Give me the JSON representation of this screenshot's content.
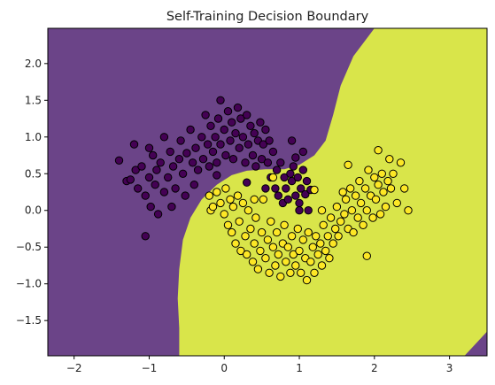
{
  "chart_data": {
    "type": "scatter",
    "title": "Self-Training Decision Boundary",
    "xlabel": "",
    "ylabel": "",
    "xlim": [
      -2.35,
      3.5
    ],
    "ylim": [
      -1.98,
      2.48
    ],
    "xticks": [
      -2,
      -1,
      0,
      1,
      2,
      3
    ],
    "yticks": [
      -1.5,
      -1.0,
      -0.5,
      0.0,
      0.5,
      1.0,
      1.5,
      2.0
    ],
    "xtick_labels": [
      "−2",
      "−1",
      "0",
      "1",
      "2",
      "3"
    ],
    "ytick_labels": [
      "−1.5",
      "−1.0",
      "−0.5",
      "0.0",
      "0.5",
      "1.0",
      "1.5",
      "2.0"
    ],
    "grid": false,
    "colors": {
      "class0_region": "#6b4488",
      "class1_region": "#d9e54a",
      "class0_point": "#440154",
      "class1_point": "#fde725",
      "edge": "#000000"
    },
    "boundary": [
      [
        -0.6,
        -1.98
      ],
      [
        -0.6,
        -1.6
      ],
      [
        -0.62,
        -1.2
      ],
      [
        -0.6,
        -0.8
      ],
      [
        -0.55,
        -0.4
      ],
      [
        -0.45,
        -0.1
      ],
      [
        -0.3,
        0.15
      ],
      [
        -0.1,
        0.35
      ],
      [
        0.1,
        0.48
      ],
      [
        0.3,
        0.54
      ],
      [
        0.55,
        0.56
      ],
      [
        0.8,
        0.56
      ],
      [
        1.0,
        0.62
      ],
      [
        1.2,
        0.75
      ],
      [
        1.35,
        0.95
      ],
      [
        1.45,
        1.3
      ],
      [
        1.55,
        1.7
      ],
      [
        1.72,
        2.1
      ],
      [
        2.0,
        2.48
      ]
    ],
    "boundary_bottom_right": [
      [
        3.2,
        -1.98
      ],
      [
        3.5,
        -1.65
      ]
    ],
    "series": [
      {
        "label": "0",
        "points": [
          [
            -1.4,
            0.68
          ],
          [
            -1.3,
            0.4
          ],
          [
            -1.25,
            0.42
          ],
          [
            -1.2,
            0.9
          ],
          [
            -1.18,
            0.55
          ],
          [
            -1.15,
            0.3
          ],
          [
            -1.1,
            0.6
          ],
          [
            -1.05,
            0.2
          ],
          [
            -1.0,
            0.85
          ],
          [
            -1.0,
            0.45
          ],
          [
            -0.98,
            0.05
          ],
          [
            -0.95,
            0.75
          ],
          [
            -0.92,
            0.35
          ],
          [
            -0.9,
            0.55
          ],
          [
            -0.88,
            -0.05
          ],
          [
            -0.85,
            0.65
          ],
          [
            -0.8,
            0.25
          ],
          [
            -0.8,
            1.0
          ],
          [
            -0.75,
            0.45
          ],
          [
            -0.72,
            0.8
          ],
          [
            -0.7,
            0.05
          ],
          [
            -0.68,
            0.6
          ],
          [
            -0.65,
            0.3
          ],
          [
            -0.6,
            0.7
          ],
          [
            -0.58,
            0.95
          ],
          [
            -0.55,
            0.5
          ],
          [
            -0.52,
            0.2
          ],
          [
            -0.5,
            0.78
          ],
          [
            -0.45,
            1.1
          ],
          [
            -0.42,
            0.65
          ],
          [
            -0.4,
            0.35
          ],
          [
            -0.38,
            0.85
          ],
          [
            -0.35,
            0.55
          ],
          [
            -0.3,
            1.0
          ],
          [
            -0.28,
            0.7
          ],
          [
            -0.25,
            1.3
          ],
          [
            -0.22,
            0.9
          ],
          [
            -0.2,
            0.6
          ],
          [
            -0.18,
            1.15
          ],
          [
            -0.15,
            0.8
          ],
          [
            -0.12,
            1.0
          ],
          [
            -0.1,
            0.65
          ],
          [
            -0.08,
            1.25
          ],
          [
            -0.05,
            0.9
          ],
          [
            -0.05,
            1.5
          ],
          [
            0.0,
            1.1
          ],
          [
            0.02,
            0.75
          ],
          [
            0.05,
            1.35
          ],
          [
            0.08,
            0.95
          ],
          [
            0.1,
            1.2
          ],
          [
            0.12,
            0.7
          ],
          [
            0.15,
            1.05
          ],
          [
            0.18,
            1.4
          ],
          [
            0.2,
            0.85
          ],
          [
            0.22,
            1.25
          ],
          [
            0.25,
            1.0
          ],
          [
            0.28,
            0.65
          ],
          [
            0.3,
            1.3
          ],
          [
            0.32,
            0.9
          ],
          [
            0.35,
            1.15
          ],
          [
            0.38,
            0.75
          ],
          [
            0.4,
            1.05
          ],
          [
            0.42,
            0.6
          ],
          [
            0.45,
            0.95
          ],
          [
            0.48,
            1.2
          ],
          [
            0.5,
            0.7
          ],
          [
            0.52,
            0.9
          ],
          [
            0.55,
            1.1
          ],
          [
            0.58,
            0.65
          ],
          [
            0.6,
            0.95
          ],
          [
            0.62,
            0.45
          ],
          [
            0.65,
            0.8
          ],
          [
            0.68,
            0.3
          ],
          [
            0.7,
            0.55
          ],
          [
            0.72,
            0.2
          ],
          [
            0.75,
            0.65
          ],
          [
            0.78,
            0.1
          ],
          [
            0.8,
            0.45
          ],
          [
            0.82,
            0.3
          ],
          [
            0.85,
            0.15
          ],
          [
            0.88,
            0.5
          ],
          [
            0.9,
            0.4
          ],
          [
            0.92,
            0.6
          ],
          [
            0.95,
            0.2
          ],
          [
            0.98,
            0.45
          ],
          [
            1.0,
            0.1
          ],
          [
            1.02,
            0.3
          ],
          [
            1.05,
            0.55
          ],
          [
            1.08,
            0.22
          ],
          [
            1.1,
            0.4
          ],
          [
            1.12,
            0.0
          ],
          [
            1.15,
            0.28
          ],
          [
            0.9,
            0.95
          ],
          [
            0.95,
            0.72
          ],
          [
            1.05,
            0.8
          ],
          [
            -1.05,
            -0.35
          ],
          [
            -0.1,
            0.48
          ],
          [
            0.3,
            0.38
          ],
          [
            0.55,
            0.3
          ],
          [
            1.0,
            0.0
          ]
        ]
      },
      {
        "label": "1",
        "points": [
          [
            -0.2,
            0.2
          ],
          [
            -0.18,
            0.0
          ],
          [
            -0.15,
            0.05
          ],
          [
            -0.1,
            0.25
          ],
          [
            -0.05,
            0.1
          ],
          [
            0.0,
            -0.05
          ],
          [
            0.02,
            0.3
          ],
          [
            0.05,
            -0.2
          ],
          [
            0.08,
            0.15
          ],
          [
            0.1,
            -0.3
          ],
          [
            0.12,
            0.05
          ],
          [
            0.15,
            -0.45
          ],
          [
            0.18,
            0.2
          ],
          [
            0.2,
            -0.15
          ],
          [
            0.22,
            -0.55
          ],
          [
            0.25,
            0.1
          ],
          [
            0.28,
            -0.35
          ],
          [
            0.3,
            -0.6
          ],
          [
            0.32,
            0.0
          ],
          [
            0.35,
            -0.25
          ],
          [
            0.38,
            -0.7
          ],
          [
            0.4,
            -0.45
          ],
          [
            0.42,
            -0.1
          ],
          [
            0.45,
            -0.8
          ],
          [
            0.48,
            -0.55
          ],
          [
            0.5,
            -0.3
          ],
          [
            0.52,
            0.15
          ],
          [
            0.55,
            -0.65
          ],
          [
            0.58,
            -0.4
          ],
          [
            0.6,
            -0.85
          ],
          [
            0.62,
            -0.15
          ],
          [
            0.65,
            -0.5
          ],
          [
            0.68,
            -0.75
          ],
          [
            0.7,
            -0.3
          ],
          [
            0.72,
            -0.6
          ],
          [
            0.75,
            -0.9
          ],
          [
            0.78,
            -0.45
          ],
          [
            0.8,
            -0.2
          ],
          [
            0.82,
            -0.7
          ],
          [
            0.85,
            -0.5
          ],
          [
            0.88,
            -0.85
          ],
          [
            0.9,
            -0.35
          ],
          [
            0.92,
            -0.6
          ],
          [
            0.95,
            -0.75
          ],
          [
            0.98,
            -0.25
          ],
          [
            1.0,
            -0.55
          ],
          [
            1.02,
            -0.85
          ],
          [
            1.05,
            -0.4
          ],
          [
            1.08,
            -0.65
          ],
          [
            1.1,
            -0.95
          ],
          [
            1.12,
            -0.3
          ],
          [
            1.15,
            -0.7
          ],
          [
            1.18,
            -0.5
          ],
          [
            1.2,
            -0.85
          ],
          [
            1.22,
            -0.35
          ],
          [
            1.25,
            -0.6
          ],
          [
            1.28,
            -0.45
          ],
          [
            1.3,
            -0.75
          ],
          [
            1.32,
            -0.2
          ],
          [
            1.35,
            -0.55
          ],
          [
            1.38,
            -0.35
          ],
          [
            1.4,
            -0.65
          ],
          [
            1.42,
            -0.1
          ],
          [
            1.45,
            -0.45
          ],
          [
            1.48,
            -0.25
          ],
          [
            1.5,
            0.05
          ],
          [
            1.52,
            -0.35
          ],
          [
            1.55,
            -0.15
          ],
          [
            1.58,
            0.25
          ],
          [
            1.6,
            -0.05
          ],
          [
            1.62,
            0.15
          ],
          [
            1.65,
            -0.25
          ],
          [
            1.68,
            0.3
          ],
          [
            1.7,
            0.0
          ],
          [
            1.72,
            -0.3
          ],
          [
            1.75,
            0.2
          ],
          [
            1.78,
            -0.1
          ],
          [
            1.8,
            0.4
          ],
          [
            1.82,
            0.1
          ],
          [
            1.85,
            -0.2
          ],
          [
            1.88,
            0.3
          ],
          [
            1.9,
            0.0
          ],
          [
            1.92,
            0.55
          ],
          [
            1.95,
            0.2
          ],
          [
            1.98,
            -0.1
          ],
          [
            2.0,
            0.45
          ],
          [
            2.02,
            0.15
          ],
          [
            2.05,
            0.35
          ],
          [
            2.08,
            -0.05
          ],
          [
            2.1,
            0.5
          ],
          [
            2.12,
            0.25
          ],
          [
            2.15,
            0.05
          ],
          [
            2.18,
            0.4
          ],
          [
            2.2,
            0.7
          ],
          [
            2.22,
            0.3
          ],
          [
            2.25,
            0.5
          ],
          [
            2.3,
            0.1
          ],
          [
            2.35,
            0.65
          ],
          [
            2.4,
            0.3
          ],
          [
            2.45,
            0.0
          ],
          [
            2.05,
            0.82
          ],
          [
            1.2,
            0.28
          ],
          [
            1.3,
            0.0
          ],
          [
            0.65,
            0.45
          ],
          [
            0.4,
            0.15
          ],
          [
            1.65,
            0.62
          ],
          [
            1.9,
            -0.62
          ]
        ]
      }
    ]
  }
}
